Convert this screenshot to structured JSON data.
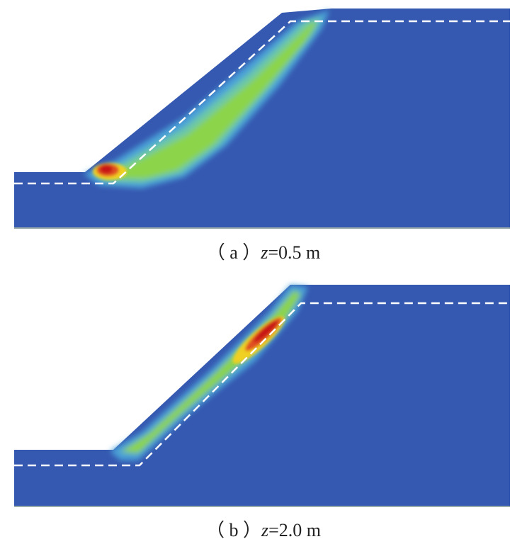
{
  "panels": [
    {
      "label": "（ a ）",
      "variable": "z",
      "value": "=0.5 m"
    },
    {
      "label": "（ b ）",
      "variable": "z",
      "value": "=2.0 m"
    }
  ]
}
